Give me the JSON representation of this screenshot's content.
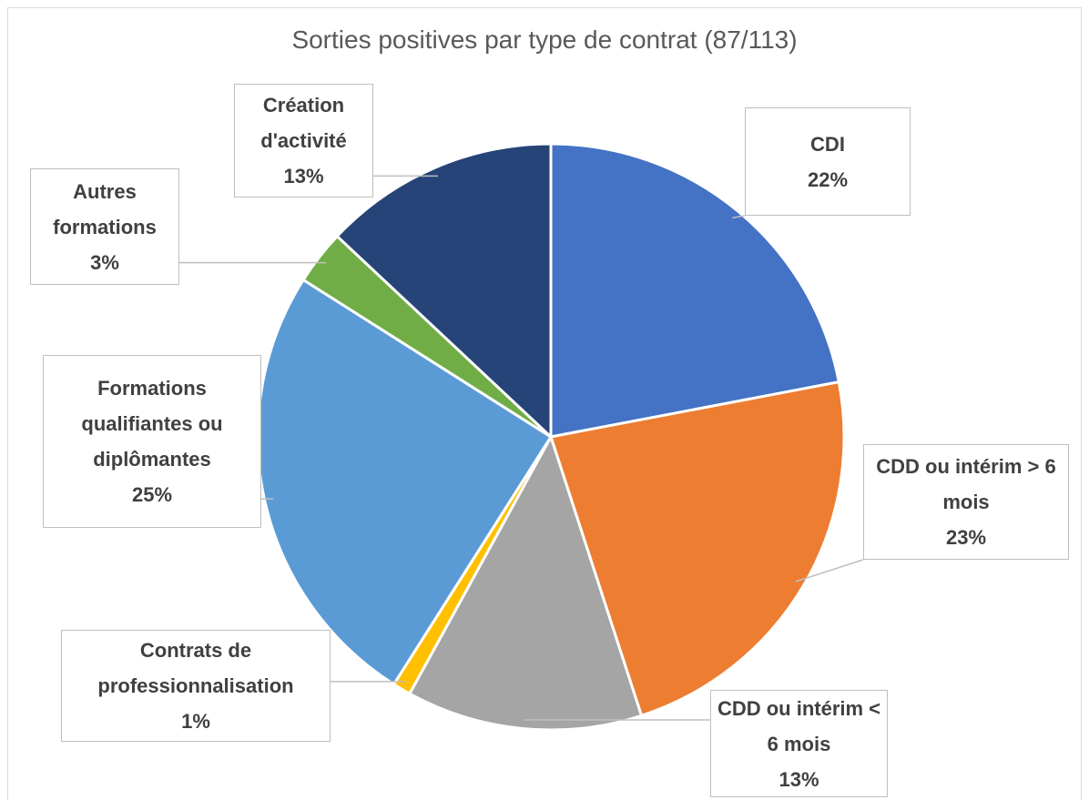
{
  "chart_data": {
    "type": "pie",
    "title": "Sorties positives par type de contrat (87/113)",
    "categories": [
      "CDI",
      "CDD ou intérim > 6 mois",
      "CDD ou intérim < 6 mois",
      "Contrats de professionnalisation",
      "Formations qualifiantes ou diplômantes",
      "Autres formations",
      "Création d'activité"
    ],
    "values": [
      22,
      23,
      13,
      1,
      25,
      3,
      13
    ],
    "value_labels": [
      "22%",
      "23%",
      "13%",
      "1%",
      "25%",
      "3%",
      "13%"
    ],
    "colors": [
      "#4472c4",
      "#ed7d31",
      "#a5a5a5",
      "#ffc000",
      "#5b9bd5",
      "#70ad47",
      "#264478"
    ]
  }
}
